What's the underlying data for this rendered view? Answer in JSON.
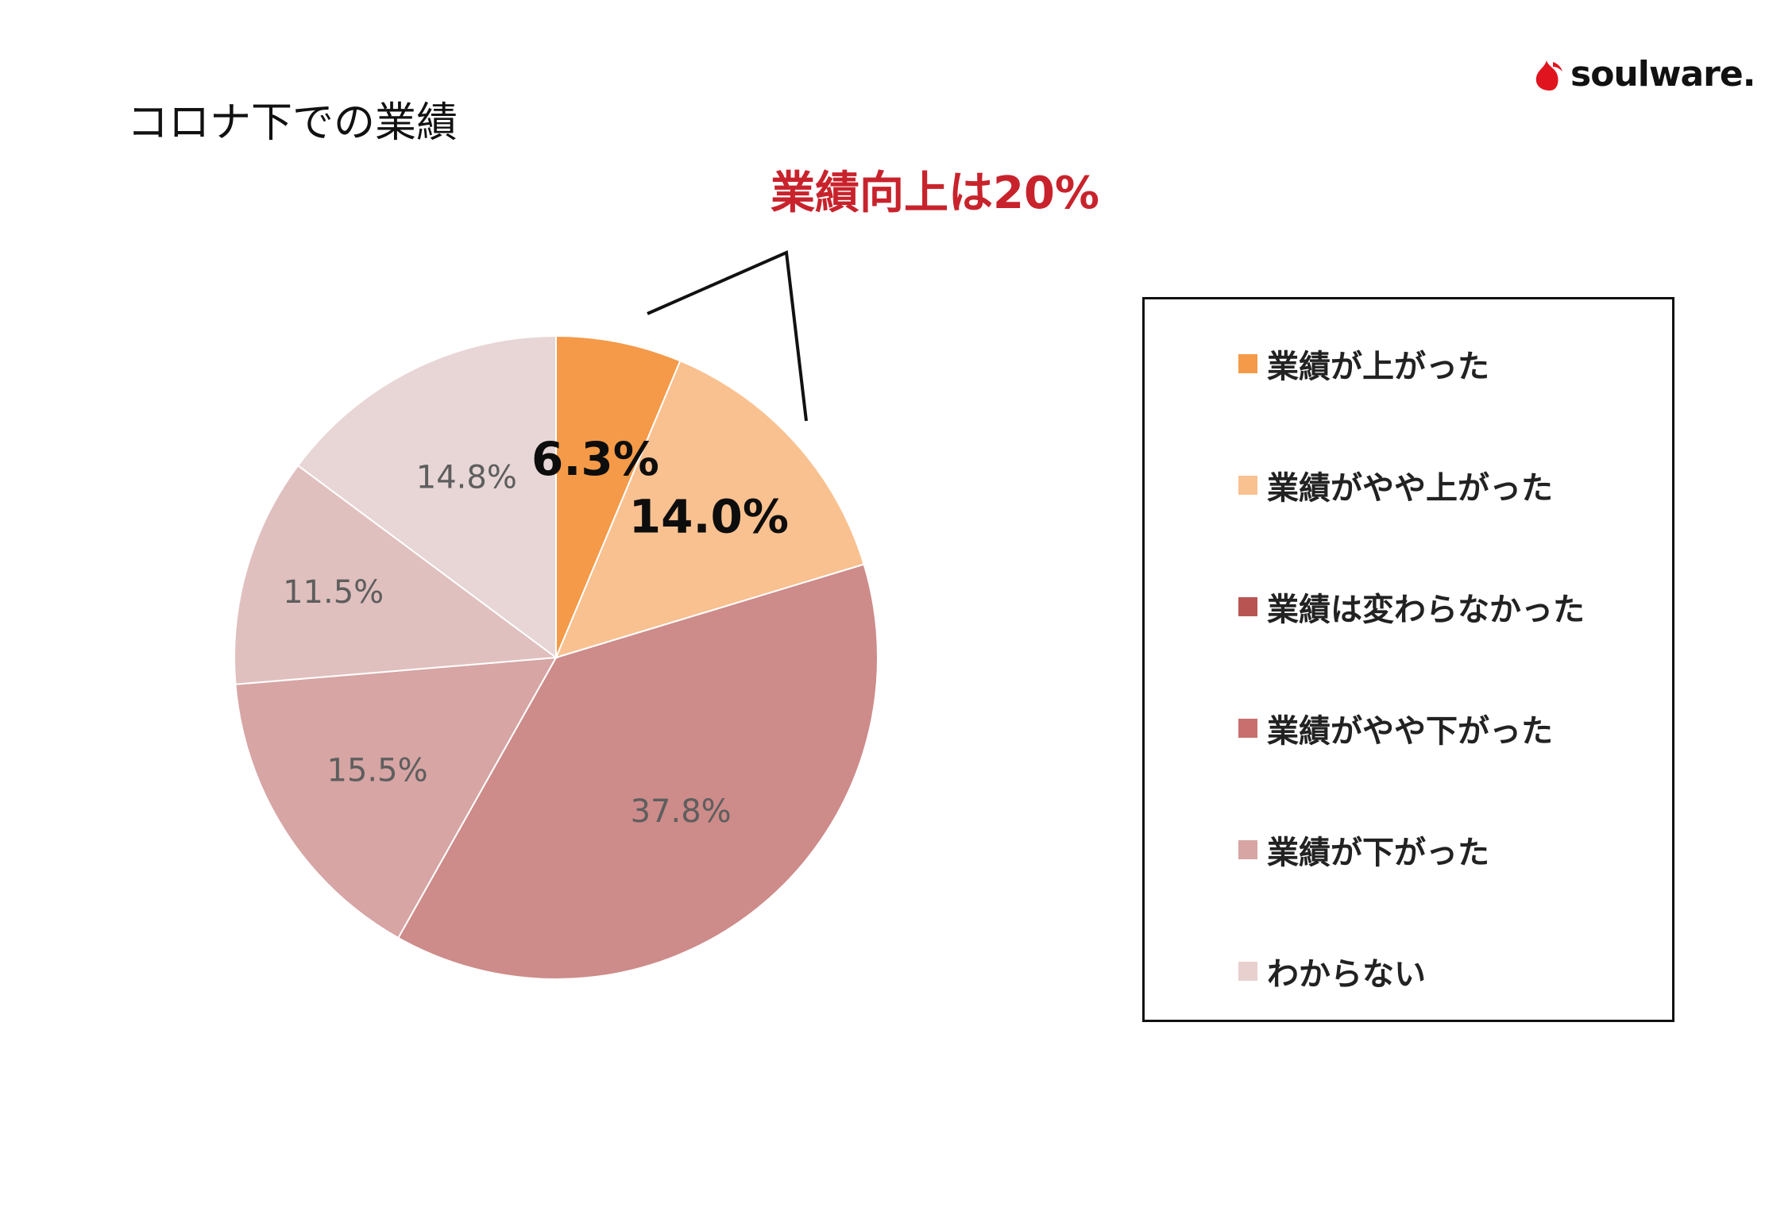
{
  "title": "コロナ下での業績",
  "logo": {
    "text": "soulware.",
    "icon": "flame-drop-icon",
    "color": "#e0141e"
  },
  "callout": {
    "text": "業績向上は20%",
    "color": "#c8232c"
  },
  "chart_data": {
    "type": "pie",
    "start_angle_deg": 0,
    "direction": "clockwise",
    "slices": [
      {
        "name": "業績が上がった",
        "value": 6.3,
        "label": "6.3%",
        "color": "#f49a48",
        "label_emphasis": true
      },
      {
        "name": "業績がやや上がった",
        "value": 14.0,
        "label": "14.0%",
        "color": "#f9c190",
        "label_emphasis": true
      },
      {
        "name": "業績は変わらなかった",
        "value": 37.8,
        "label": "37.8%",
        "color": "#cd8b89",
        "label_emphasis": false
      },
      {
        "name": "業績がやや下がった",
        "value": 15.5,
        "label": "15.5%",
        "color": "#d6a5a4",
        "label_emphasis": false
      },
      {
        "name": "業績が下がった",
        "value": 11.5,
        "label": "11.5%",
        "color": "#e0c0bf",
        "label_emphasis": false
      },
      {
        "name": "わからない",
        "value": 14.8,
        "label": "14.8%",
        "color": "#e8d6d6",
        "label_emphasis": false
      }
    ],
    "legend": {
      "placement": "right",
      "items": [
        {
          "label": "業績が上がった",
          "color": "#f49a48"
        },
        {
          "label": "業績がやや上がった",
          "color": "#f9c190"
        },
        {
          "label": "業績は変わらなかった",
          "color": "#b85552"
        },
        {
          "label": "業績がやや下がった",
          "color": "#c96f6e"
        },
        {
          "label": "業績が下がった",
          "color": "#d6a5a4"
        },
        {
          "label": "わからない",
          "color": "#e8d0cf"
        }
      ]
    }
  }
}
